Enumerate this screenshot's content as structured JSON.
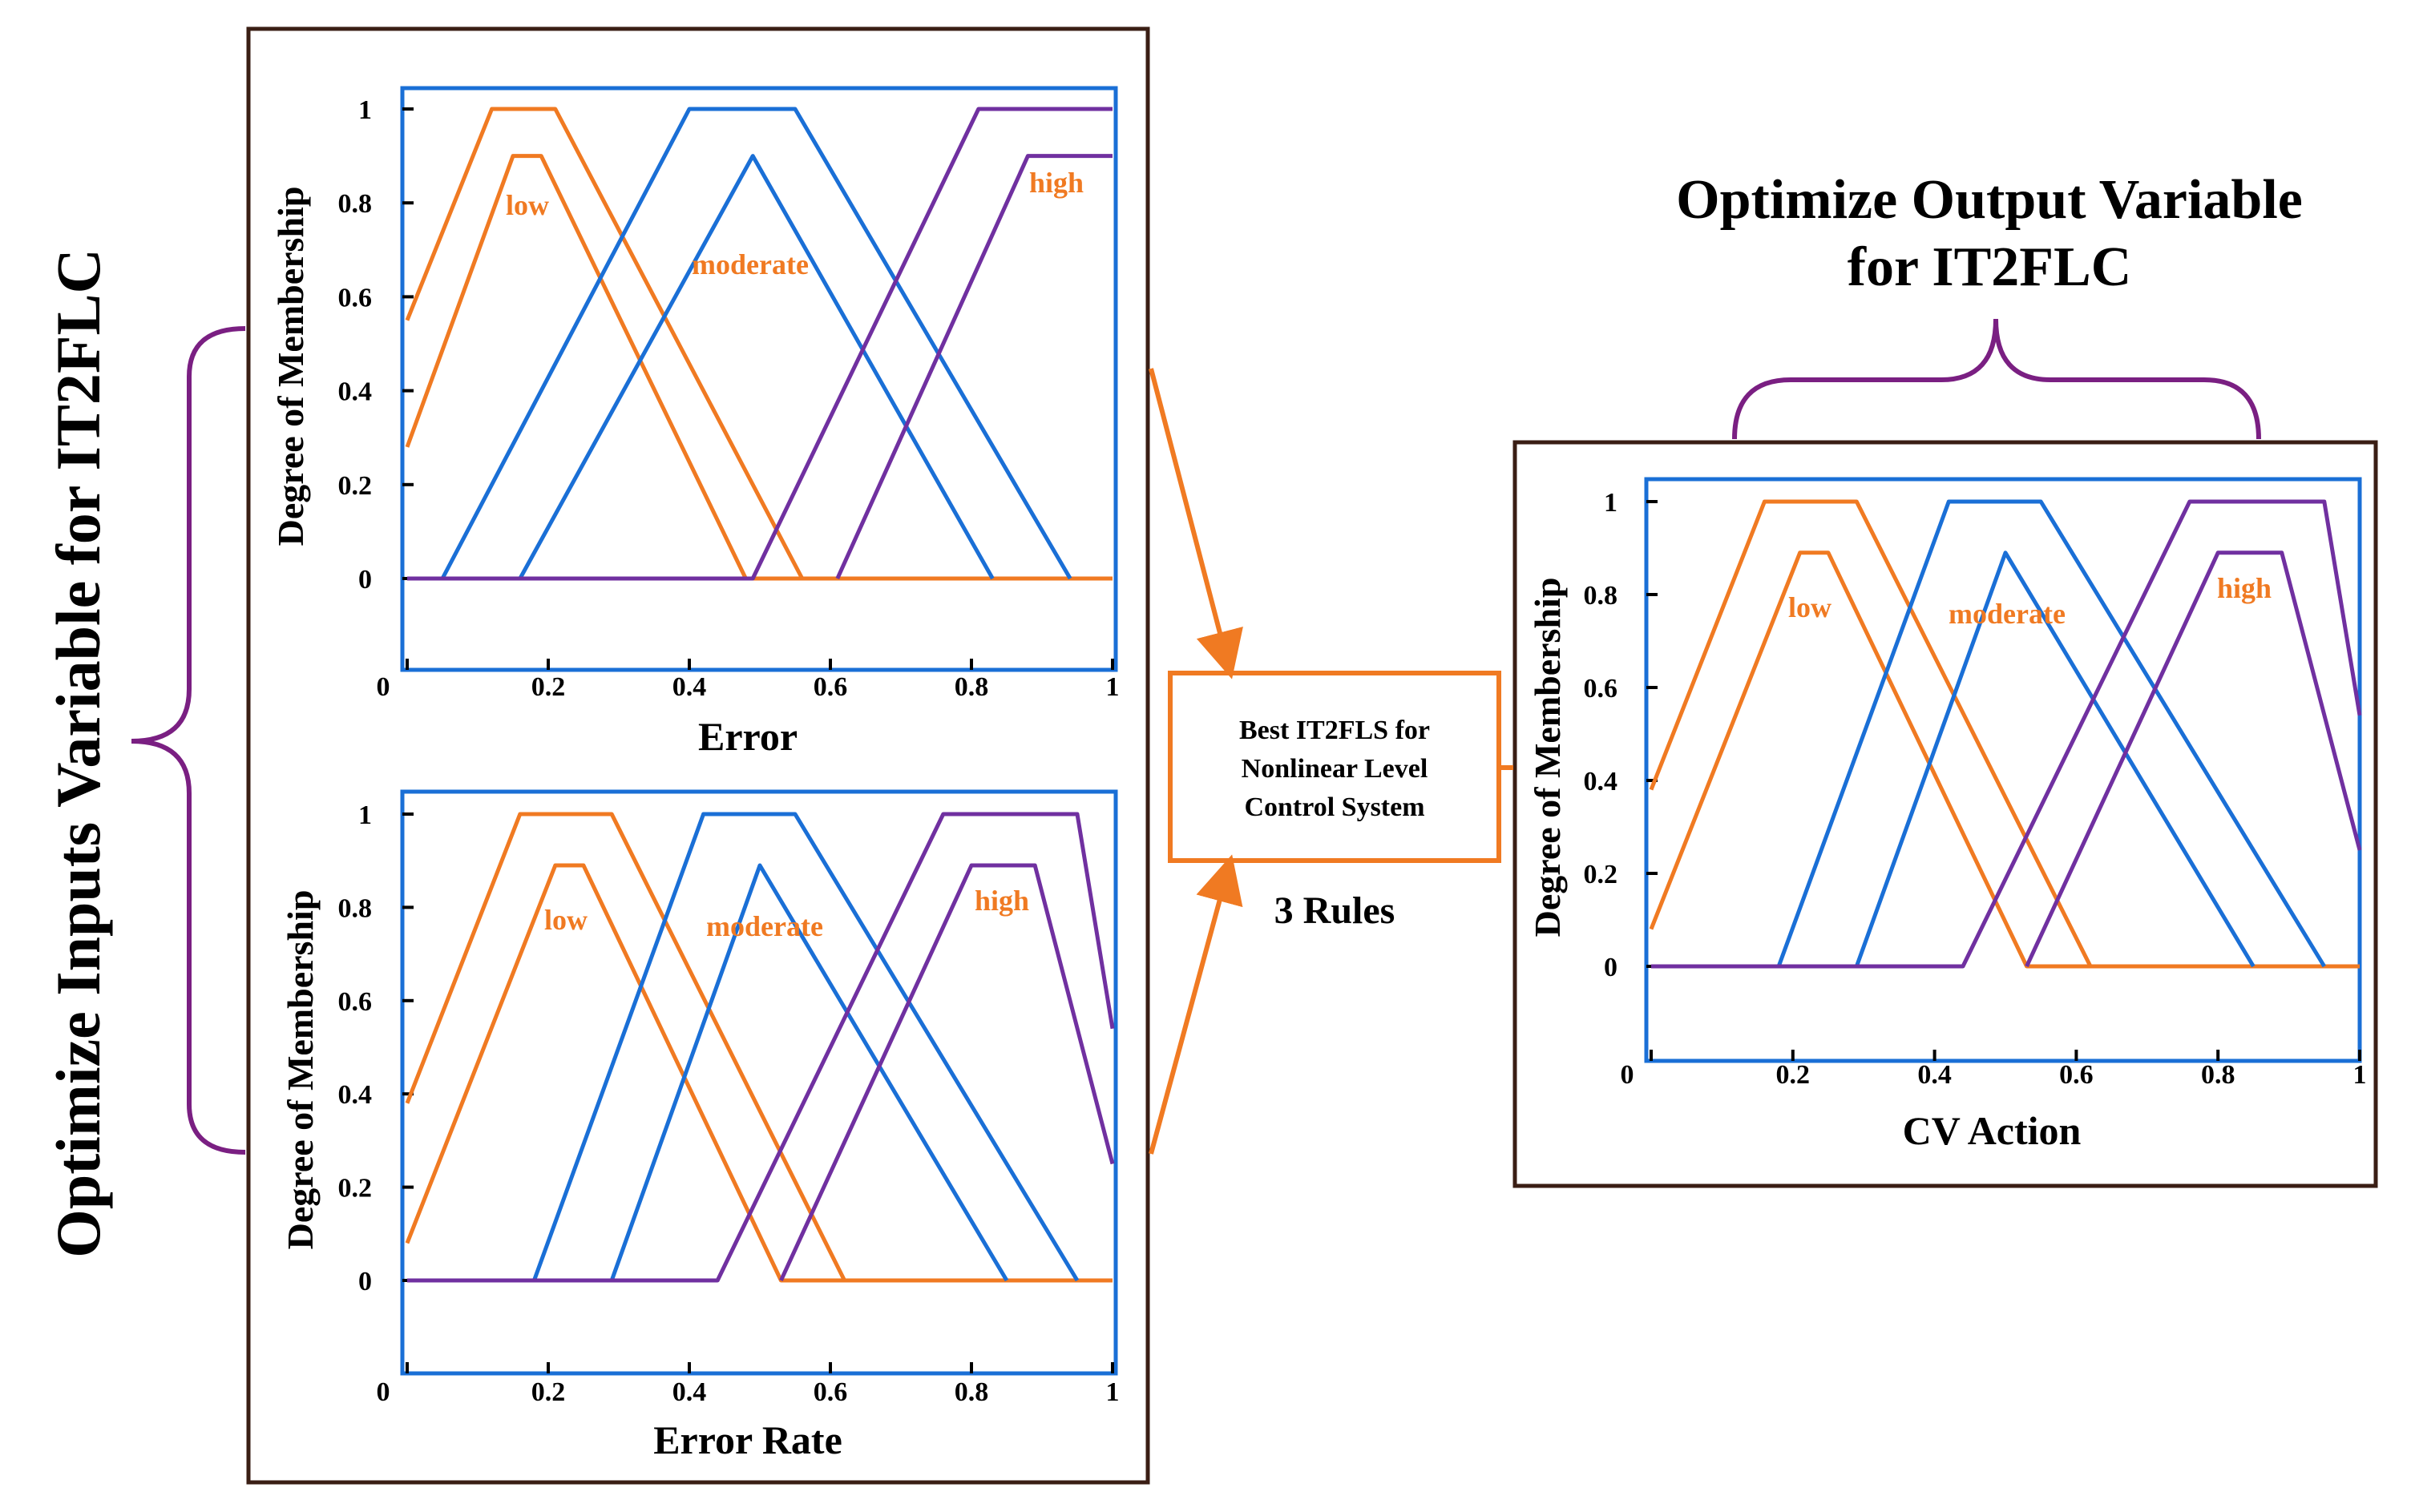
{
  "left_caption": "Optimize Inputs Variable for IT2FLC",
  "right_caption_line1": "Optimize Output Variable",
  "right_caption_line2": "for IT2FLC",
  "rule_box_lines": [
    "Best IT2FLS for",
    "Nonlinear Level",
    "Control System"
  ],
  "rules_label": "3 Rules",
  "colors": {
    "frame": "#3a1e14",
    "axes_box": "#1a6fd6",
    "low": "#f07a22",
    "moderate": "#1a6fd6",
    "high": "#7030a0",
    "brace": "#7a1f82",
    "arrow": "#f07a22",
    "label_text": "#f07a22"
  },
  "chart_data": [
    {
      "id": "error",
      "type": "line",
      "xlabel": "Error",
      "ylabel": "Degree of Membership",
      "x_ticks": [
        "0",
        "0.2",
        "0.4",
        "0.6",
        "0.8",
        "1"
      ],
      "y_ticks": [
        "0",
        "0.2",
        "0.4",
        "0.6",
        "0.8",
        "1"
      ],
      "xlim": [
        0,
        1
      ],
      "ylim": [
        -0.28,
        1.05
      ],
      "set_labels": [
        "low",
        "moderate",
        "high"
      ],
      "series": [
        {
          "set": "low",
          "bound": "upper",
          "x": [
            0,
            0.12,
            0.21,
            0.56,
            1.0
          ],
          "y": [
            0.55,
            1.0,
            1.0,
            0,
            0
          ]
        },
        {
          "set": "low",
          "bound": "lower",
          "x": [
            0,
            0.15,
            0.19,
            0.48,
            1.0
          ],
          "y": [
            0.28,
            0.9,
            0.9,
            0,
            0
          ]
        },
        {
          "set": "moderate",
          "bound": "upper",
          "x": [
            0.05,
            0.4,
            0.55,
            0.94
          ],
          "y": [
            0,
            1.0,
            1.0,
            0
          ]
        },
        {
          "set": "moderate",
          "bound": "lower",
          "x": [
            0.16,
            0.49,
            0.83
          ],
          "y": [
            0,
            0.9,
            0
          ]
        },
        {
          "set": "high",
          "bound": "upper",
          "x": [
            0,
            0.49,
            0.81,
            1.0
          ],
          "y": [
            0,
            0,
            1.0,
            1.0
          ]
        },
        {
          "set": "high",
          "bound": "lower",
          "x": [
            0.61,
            0.88,
            1.0
          ],
          "y": [
            0,
            0.9,
            0.9
          ]
        }
      ]
    },
    {
      "id": "error_rate",
      "type": "line",
      "xlabel": "Error Rate",
      "ylabel": "Degree of Membership",
      "x_ticks": [
        "0",
        "0.2",
        "0.4",
        "0.6",
        "0.8",
        "1"
      ],
      "y_ticks": [
        "0",
        "0.2",
        "0.4",
        "0.6",
        "0.8",
        "1"
      ],
      "xlim": [
        0,
        1
      ],
      "ylim": [
        -0.2,
        1.05
      ],
      "set_labels": [
        "low",
        "moderate",
        "high"
      ],
      "series": [
        {
          "set": "low",
          "bound": "upper",
          "x": [
            0,
            0.16,
            0.29,
            0.62,
            1.0
          ],
          "y": [
            0.38,
            1.0,
            1.0,
            0,
            0
          ]
        },
        {
          "set": "low",
          "bound": "lower",
          "x": [
            0,
            0.21,
            0.25,
            0.53,
            1.0
          ],
          "y": [
            0.08,
            0.89,
            0.89,
            0,
            0
          ]
        },
        {
          "set": "moderate",
          "bound": "upper",
          "x": [
            0.18,
            0.42,
            0.55,
            0.95
          ],
          "y": [
            0,
            1.0,
            1.0,
            0
          ]
        },
        {
          "set": "moderate",
          "bound": "lower",
          "x": [
            0.29,
            0.5,
            0.85
          ],
          "y": [
            0,
            0.89,
            0
          ]
        },
        {
          "set": "high",
          "bound": "upper",
          "x": [
            0,
            0.44,
            0.76,
            0.95,
            1.0
          ],
          "y": [
            0,
            0,
            1.0,
            1.0,
            0.54
          ]
        },
        {
          "set": "high",
          "bound": "lower",
          "x": [
            0.53,
            0.8,
            0.89,
            1.0
          ],
          "y": [
            0,
            0.89,
            0.89,
            0.25
          ]
        }
      ]
    },
    {
      "id": "cv_action",
      "type": "line",
      "xlabel": "CV Action",
      "ylabel": "Degree of Membership",
      "x_ticks": [
        "0",
        "0.2",
        "0.4",
        "0.6",
        "0.8",
        "1"
      ],
      "y_ticks": [
        "0",
        "0.2",
        "0.4",
        "0.6",
        "0.8",
        "1"
      ],
      "xlim": [
        0,
        1
      ],
      "ylim": [
        -0.2,
        1.05
      ],
      "set_labels": [
        "low",
        "moderate",
        "high"
      ],
      "series": [
        {
          "set": "low",
          "bound": "upper",
          "x": [
            0,
            0.16,
            0.29,
            0.62,
            1.0
          ],
          "y": [
            0.38,
            1.0,
            1.0,
            0,
            0
          ]
        },
        {
          "set": "low",
          "bound": "lower",
          "x": [
            0,
            0.21,
            0.25,
            0.53,
            1.0
          ],
          "y": [
            0.08,
            0.89,
            0.89,
            0,
            0
          ]
        },
        {
          "set": "moderate",
          "bound": "upper",
          "x": [
            0.18,
            0.42,
            0.55,
            0.95
          ],
          "y": [
            0,
            1.0,
            1.0,
            0
          ]
        },
        {
          "set": "moderate",
          "bound": "lower",
          "x": [
            0.29,
            0.5,
            0.85
          ],
          "y": [
            0,
            0.89,
            0
          ]
        },
        {
          "set": "high",
          "bound": "upper",
          "x": [
            0,
            0.44,
            0.76,
            0.95,
            1.0
          ],
          "y": [
            0,
            0,
            1.0,
            1.0,
            0.54
          ]
        },
        {
          "set": "high",
          "bound": "lower",
          "x": [
            0.53,
            0.8,
            0.89,
            1.0
          ],
          "y": [
            0,
            0.89,
            0.89,
            0.25
          ]
        }
      ]
    }
  ]
}
